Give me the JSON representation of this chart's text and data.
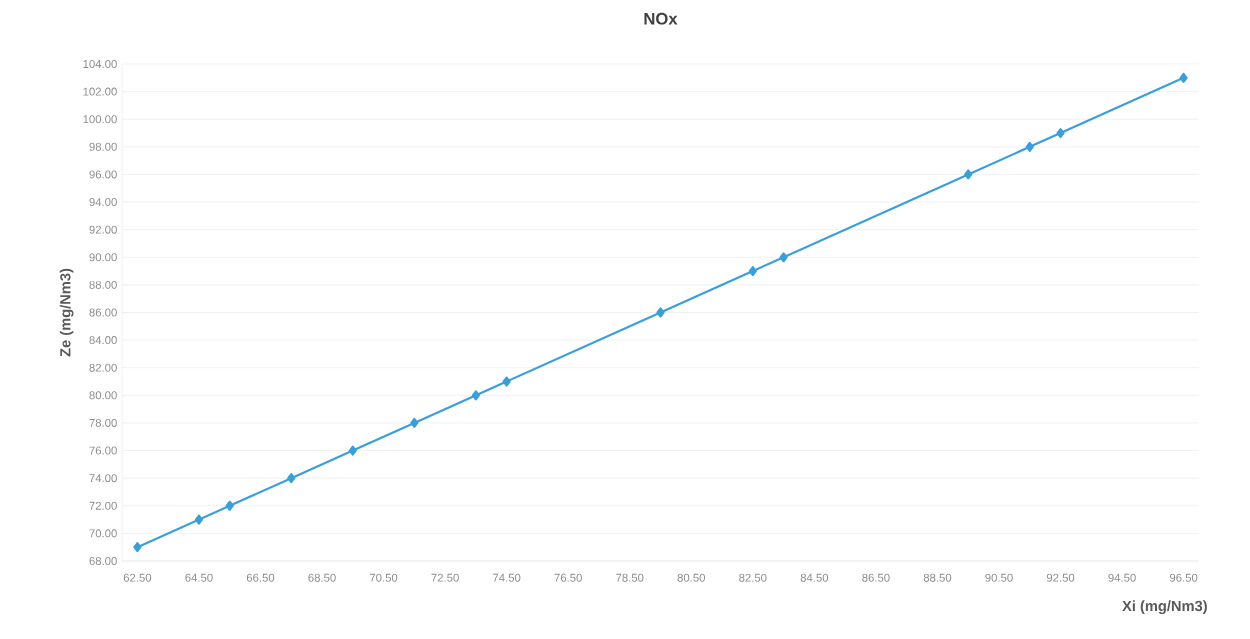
{
  "chart_data": {
    "type": "line",
    "title": "NOx",
    "xlabel": "Xi (mg/Nm3)",
    "ylabel": "Ze (mg/Nm3)",
    "x": [
      62.5,
      64.5,
      65.5,
      67.5,
      69.5,
      71.5,
      73.5,
      74.5,
      79.5,
      82.5,
      83.5,
      89.5,
      91.5,
      92.5,
      96.5
    ],
    "series": [
      {
        "color": "#3a9fd8",
        "values": [
          69,
          71,
          72,
          74,
          76,
          78,
          80,
          81,
          86,
          89,
          90,
          96,
          98,
          99,
          103
        ]
      }
    ],
    "marker": "diamond",
    "grid": "y",
    "xlim": [
      62,
      97
    ],
    "ylim": [
      68,
      104
    ],
    "xticks": [
      {
        "value": 62.5,
        "label": "62.50"
      },
      {
        "value": 64.5,
        "label": "64.50"
      },
      {
        "value": 66.5,
        "label": "66.50"
      },
      {
        "value": 68.5,
        "label": "68.50"
      },
      {
        "value": 70.5,
        "label": "70.50"
      },
      {
        "value": 72.5,
        "label": "72.50"
      },
      {
        "value": 74.5,
        "label": "74.50"
      },
      {
        "value": 76.5,
        "label": "76.50"
      },
      {
        "value": 78.5,
        "label": "78.50"
      },
      {
        "value": 80.5,
        "label": "80.50"
      },
      {
        "value": 82.5,
        "label": "82.50"
      },
      {
        "value": 84.5,
        "label": "84.50"
      },
      {
        "value": 86.5,
        "label": "86.50"
      },
      {
        "value": 88.5,
        "label": "88.50"
      },
      {
        "value": 90.5,
        "label": "90.50"
      },
      {
        "value": 92.5,
        "label": "92.50"
      },
      {
        "value": 94.5,
        "label": "94.50"
      },
      {
        "value": 96.5,
        "label": "96.50"
      }
    ],
    "yticks": [
      {
        "value": 68,
        "label": "68.00"
      },
      {
        "value": 70,
        "label": "70.00"
      },
      {
        "value": 72,
        "label": "72.00"
      },
      {
        "value": 74,
        "label": "74.00"
      },
      {
        "value": 76,
        "label": "76.00"
      },
      {
        "value": 78,
        "label": "78.00"
      },
      {
        "value": 80,
        "label": "80.00"
      },
      {
        "value": 82,
        "label": "82.00"
      },
      {
        "value": 84,
        "label": "84.00"
      },
      {
        "value": 86,
        "label": "86.00"
      },
      {
        "value": 88,
        "label": "88.00"
      },
      {
        "value": 90,
        "label": "90.00"
      },
      {
        "value": 92,
        "label": "92.00"
      },
      {
        "value": 94,
        "label": "94.00"
      },
      {
        "value": 96,
        "label": "96.00"
      },
      {
        "value": 98,
        "label": "98.00"
      },
      {
        "value": 100,
        "label": "100.00"
      },
      {
        "value": 102,
        "label": "102.00"
      },
      {
        "value": 104,
        "label": "104.00"
      }
    ]
  }
}
